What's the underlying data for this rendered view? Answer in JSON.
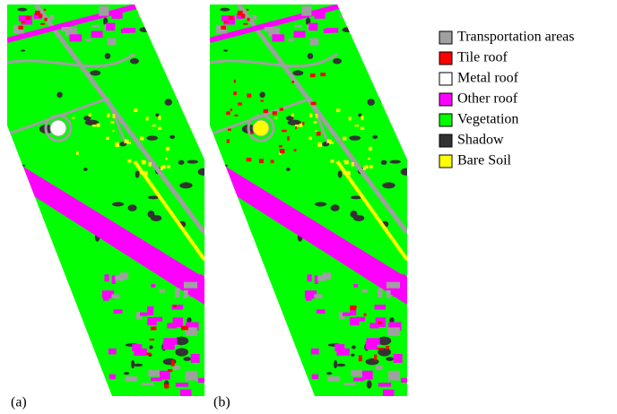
{
  "legend": {
    "items": [
      {
        "label": "Transportation areas",
        "color": "#a0a0a0"
      },
      {
        "label": "Tile roof",
        "color": "#ff0000"
      },
      {
        "label": "Metal roof",
        "color": "#ffffff"
      },
      {
        "label": "Other roof",
        "color": "#ff00ff"
      },
      {
        "label": "Vegetation",
        "color": "#00ff00"
      },
      {
        "label": "Shadow",
        "color": "#333333"
      },
      {
        "label": "Bare Soil",
        "color": "#ffff00"
      }
    ]
  },
  "panels": [
    {
      "label": "(a)"
    },
    {
      "label": "(b)"
    }
  ]
}
